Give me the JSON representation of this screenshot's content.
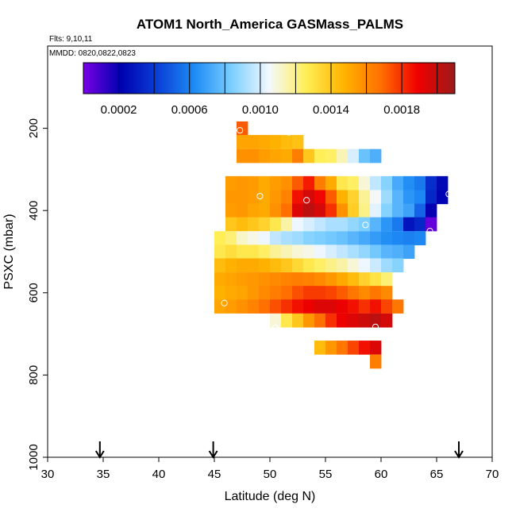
{
  "chart_data": {
    "type": "heatmap",
    "title": "ATOM1 North_America GASMass_PALMS",
    "flights_label": "Flts: 9,10,11",
    "dates_label": "MMDD: 0820,0822,0823",
    "xlabel": "Latitude (deg N)",
    "ylabel": "PSXC (mbar)",
    "xlim": [
      30,
      70
    ],
    "ylim": [
      1000,
      0
    ],
    "x_ticks": [
      30,
      35,
      40,
      45,
      50,
      55,
      60,
      65,
      70
    ],
    "y_ticks": [
      200,
      400,
      600,
      800,
      1000
    ],
    "colorbar": {
      "range": [
        0.0,
        0.0021
      ],
      "tick_values": [
        0.0002,
        0.0006,
        0.001,
        0.0014,
        0.0018
      ],
      "tick_labels": [
        "0.0002",
        "0.0006",
        "0.0010",
        "0.0014",
        "0.0018"
      ],
      "colors": [
        "#7a00e6",
        "#0000b0",
        "#0a3fd6",
        "#1e8cf5",
        "#7ccfff",
        "#f4f8ff",
        "#ffee55",
        "#ffb400",
        "#ff7000",
        "#f00000",
        "#9c1a1a"
      ]
    },
    "cells": [
      {
        "lat": 47,
        "p": 200,
        "v": 0.00172
      },
      {
        "lat": 47,
        "p": 233,
        "v": 0.00152
      },
      {
        "lat": 48,
        "p": 233,
        "v": 0.00152
      },
      {
        "lat": 49,
        "p": 233,
        "v": 0.0015
      },
      {
        "lat": 50,
        "p": 233,
        "v": 0.00148
      },
      {
        "lat": 51,
        "p": 233,
        "v": 0.00144
      },
      {
        "lat": 52,
        "p": 233,
        "v": 0.00142
      },
      {
        "lat": 47,
        "p": 267,
        "v": 0.00158
      },
      {
        "lat": 48,
        "p": 267,
        "v": 0.00158
      },
      {
        "lat": 49,
        "p": 267,
        "v": 0.00154
      },
      {
        "lat": 50,
        "p": 267,
        "v": 0.00152
      },
      {
        "lat": 51,
        "p": 267,
        "v": 0.0015
      },
      {
        "lat": 52,
        "p": 267,
        "v": 0.00164
      },
      {
        "lat": 53,
        "p": 267,
        "v": 0.0014
      },
      {
        "lat": 54,
        "p": 267,
        "v": 0.00126
      },
      {
        "lat": 55,
        "p": 267,
        "v": 0.00124
      },
      {
        "lat": 56,
        "p": 267,
        "v": 0.00114
      },
      {
        "lat": 57,
        "p": 267,
        "v": 0.001
      },
      {
        "lat": 58,
        "p": 267,
        "v": 0.0008
      },
      {
        "lat": 59,
        "p": 267,
        "v": 0.00074
      },
      {
        "lat": 46,
        "p": 333,
        "v": 0.00154
      },
      {
        "lat": 47,
        "p": 333,
        "v": 0.00156
      },
      {
        "lat": 48,
        "p": 333,
        "v": 0.00154
      },
      {
        "lat": 49,
        "p": 333,
        "v": 0.0015
      },
      {
        "lat": 50,
        "p": 333,
        "v": 0.00154
      },
      {
        "lat": 51,
        "p": 333,
        "v": 0.00158
      },
      {
        "lat": 52,
        "p": 333,
        "v": 0.00172
      },
      {
        "lat": 53,
        "p": 333,
        "v": 0.00184
      },
      {
        "lat": 54,
        "p": 333,
        "v": 0.00164
      },
      {
        "lat": 55,
        "p": 333,
        "v": 0.0015
      },
      {
        "lat": 56,
        "p": 333,
        "v": 0.00128
      },
      {
        "lat": 57,
        "p": 333,
        "v": 0.00124
      },
      {
        "lat": 58,
        "p": 333,
        "v": 0.0011
      },
      {
        "lat": 59,
        "p": 333,
        "v": 0.00096
      },
      {
        "lat": 60,
        "p": 333,
        "v": 0.00086
      },
      {
        "lat": 61,
        "p": 333,
        "v": 0.00072
      },
      {
        "lat": 62,
        "p": 333,
        "v": 0.00064
      },
      {
        "lat": 63,
        "p": 333,
        "v": 0.00058
      },
      {
        "lat": 64,
        "p": 333,
        "v": 0.00036
      },
      {
        "lat": 65,
        "p": 333,
        "v": 0.00024
      },
      {
        "lat": 46,
        "p": 367,
        "v": 0.00156
      },
      {
        "lat": 47,
        "p": 367,
        "v": 0.00156
      },
      {
        "lat": 48,
        "p": 367,
        "v": 0.00154
      },
      {
        "lat": 49,
        "p": 367,
        "v": 0.0015
      },
      {
        "lat": 50,
        "p": 367,
        "v": 0.00156
      },
      {
        "lat": 51,
        "p": 367,
        "v": 0.00162
      },
      {
        "lat": 52,
        "p": 367,
        "v": 0.00186
      },
      {
        "lat": 53,
        "p": 367,
        "v": 0.00196
      },
      {
        "lat": 54,
        "p": 367,
        "v": 0.00188
      },
      {
        "lat": 55,
        "p": 367,
        "v": 0.00172
      },
      {
        "lat": 56,
        "p": 367,
        "v": 0.00148
      },
      {
        "lat": 57,
        "p": 367,
        "v": 0.00136
      },
      {
        "lat": 58,
        "p": 367,
        "v": 0.00118
      },
      {
        "lat": 59,
        "p": 367,
        "v": 0.00106
      },
      {
        "lat": 60,
        "p": 367,
        "v": 0.0009
      },
      {
        "lat": 61,
        "p": 367,
        "v": 0.00076
      },
      {
        "lat": 62,
        "p": 367,
        "v": 0.00066
      },
      {
        "lat": 63,
        "p": 367,
        "v": 0.00062
      },
      {
        "lat": 64,
        "p": 367,
        "v": 0.00034
      },
      {
        "lat": 65,
        "p": 367,
        "v": 0.00022
      },
      {
        "lat": 46,
        "p": 400,
        "v": 0.00154
      },
      {
        "lat": 47,
        "p": 400,
        "v": 0.00156
      },
      {
        "lat": 48,
        "p": 400,
        "v": 0.00152
      },
      {
        "lat": 49,
        "p": 400,
        "v": 0.0015
      },
      {
        "lat": 50,
        "p": 400,
        "v": 0.00158
      },
      {
        "lat": 51,
        "p": 400,
        "v": 0.00168
      },
      {
        "lat": 52,
        "p": 400,
        "v": 0.00194
      },
      {
        "lat": 53,
        "p": 400,
        "v": 0.00202
      },
      {
        "lat": 54,
        "p": 400,
        "v": 0.00196
      },
      {
        "lat": 55,
        "p": 400,
        "v": 0.0018
      },
      {
        "lat": 56,
        "p": 400,
        "v": 0.00158
      },
      {
        "lat": 57,
        "p": 400,
        "v": 0.00138
      },
      {
        "lat": 58,
        "p": 400,
        "v": 0.0012
      },
      {
        "lat": 59,
        "p": 400,
        "v": 0.00102
      },
      {
        "lat": 60,
        "p": 400,
        "v": 0.00086
      },
      {
        "lat": 61,
        "p": 400,
        "v": 0.00076
      },
      {
        "lat": 62,
        "p": 400,
        "v": 0.0007
      },
      {
        "lat": 63,
        "p": 400,
        "v": 0.00052
      },
      {
        "lat": 64,
        "p": 400,
        "v": 0.0002
      },
      {
        "lat": 46,
        "p": 433,
        "v": 0.0014
      },
      {
        "lat": 47,
        "p": 433,
        "v": 0.00144
      },
      {
        "lat": 48,
        "p": 433,
        "v": 0.0014
      },
      {
        "lat": 49,
        "p": 433,
        "v": 0.00136
      },
      {
        "lat": 50,
        "p": 433,
        "v": 0.00128
      },
      {
        "lat": 51,
        "p": 433,
        "v": 0.00116
      },
      {
        "lat": 52,
        "p": 433,
        "v": 0.00104
      },
      {
        "lat": 53,
        "p": 433,
        "v": 0.001
      },
      {
        "lat": 54,
        "p": 433,
        "v": 0.00096
      },
      {
        "lat": 55,
        "p": 433,
        "v": 0.00092
      },
      {
        "lat": 56,
        "p": 433,
        "v": 0.00092
      },
      {
        "lat": 57,
        "p": 433,
        "v": 0.00088
      },
      {
        "lat": 58,
        "p": 433,
        "v": 0.00084
      },
      {
        "lat": 59,
        "p": 433,
        "v": 0.00076
      },
      {
        "lat": 60,
        "p": 433,
        "v": 0.00066
      },
      {
        "lat": 61,
        "p": 433,
        "v": 0.00058
      },
      {
        "lat": 62,
        "p": 433,
        "v": 0.00028
      },
      {
        "lat": 63,
        "p": 433,
        "v": 0.00034
      },
      {
        "lat": 64,
        "p": 433,
        "v": 4e-05
      },
      {
        "lat": 45,
        "p": 467,
        "v": 0.00126
      },
      {
        "lat": 46,
        "p": 467,
        "v": 0.00122
      },
      {
        "lat": 47,
        "p": 467,
        "v": 0.00112
      },
      {
        "lat": 48,
        "p": 467,
        "v": 0.00108
      },
      {
        "lat": 49,
        "p": 467,
        "v": 0.00104
      },
      {
        "lat": 50,
        "p": 467,
        "v": 0.00096
      },
      {
        "lat": 51,
        "p": 467,
        "v": 0.00092
      },
      {
        "lat": 52,
        "p": 467,
        "v": 0.0009
      },
      {
        "lat": 53,
        "p": 467,
        "v": 0.00086
      },
      {
        "lat": 54,
        "p": 467,
        "v": 0.00084
      },
      {
        "lat": 55,
        "p": 467,
        "v": 0.00082
      },
      {
        "lat": 56,
        "p": 467,
        "v": 0.0008
      },
      {
        "lat": 57,
        "p": 467,
        "v": 0.00076
      },
      {
        "lat": 58,
        "p": 467,
        "v": 0.00072
      },
      {
        "lat": 59,
        "p": 467,
        "v": 0.00068
      },
      {
        "lat": 60,
        "p": 467,
        "v": 0.00064
      },
      {
        "lat": 61,
        "p": 467,
        "v": 0.00062
      },
      {
        "lat": 62,
        "p": 467,
        "v": 0.0006
      },
      {
        "lat": 63,
        "p": 467,
        "v": 0.00062
      },
      {
        "lat": 45,
        "p": 500,
        "v": 0.00128
      },
      {
        "lat": 46,
        "p": 500,
        "v": 0.00132
      },
      {
        "lat": 47,
        "p": 500,
        "v": 0.00128
      },
      {
        "lat": 48,
        "p": 500,
        "v": 0.00128
      },
      {
        "lat": 49,
        "p": 500,
        "v": 0.00124
      },
      {
        "lat": 50,
        "p": 500,
        "v": 0.00118
      },
      {
        "lat": 51,
        "p": 500,
        "v": 0.00114
      },
      {
        "lat": 52,
        "p": 500,
        "v": 0.0011
      },
      {
        "lat": 53,
        "p": 500,
        "v": 0.00108
      },
      {
        "lat": 54,
        "p": 500,
        "v": 0.00104
      },
      {
        "lat": 55,
        "p": 500,
        "v": 0.001
      },
      {
        "lat": 56,
        "p": 500,
        "v": 0.00096
      },
      {
        "lat": 57,
        "p": 500,
        "v": 0.00092
      },
      {
        "lat": 58,
        "p": 500,
        "v": 0.00088
      },
      {
        "lat": 59,
        "p": 500,
        "v": 0.00082
      },
      {
        "lat": 60,
        "p": 500,
        "v": 0.00076
      },
      {
        "lat": 61,
        "p": 500,
        "v": 0.00074
      },
      {
        "lat": 62,
        "p": 500,
        "v": 0.0007
      },
      {
        "lat": 45,
        "p": 533,
        "v": 0.00144
      },
      {
        "lat": 46,
        "p": 533,
        "v": 0.00148
      },
      {
        "lat": 47,
        "p": 533,
        "v": 0.0015
      },
      {
        "lat": 48,
        "p": 533,
        "v": 0.0015
      },
      {
        "lat": 49,
        "p": 533,
        "v": 0.00148
      },
      {
        "lat": 50,
        "p": 533,
        "v": 0.00144
      },
      {
        "lat": 51,
        "p": 533,
        "v": 0.0014
      },
      {
        "lat": 52,
        "p": 533,
        "v": 0.00134
      },
      {
        "lat": 53,
        "p": 533,
        "v": 0.00128
      },
      {
        "lat": 54,
        "p": 533,
        "v": 0.00124
      },
      {
        "lat": 55,
        "p": 533,
        "v": 0.0012
      },
      {
        "lat": 56,
        "p": 533,
        "v": 0.00116
      },
      {
        "lat": 57,
        "p": 533,
        "v": 0.0011
      },
      {
        "lat": 58,
        "p": 533,
        "v": 0.00104
      },
      {
        "lat": 59,
        "p": 533,
        "v": 0.00098
      },
      {
        "lat": 60,
        "p": 533,
        "v": 0.0009
      },
      {
        "lat": 61,
        "p": 533,
        "v": 0.00086
      },
      {
        "lat": 45,
        "p": 567,
        "v": 0.0015
      },
      {
        "lat": 46,
        "p": 567,
        "v": 0.00152
      },
      {
        "lat": 47,
        "p": 567,
        "v": 0.00154
      },
      {
        "lat": 48,
        "p": 567,
        "v": 0.00156
      },
      {
        "lat": 49,
        "p": 567,
        "v": 0.00158
      },
      {
        "lat": 50,
        "p": 567,
        "v": 0.0016
      },
      {
        "lat": 51,
        "p": 567,
        "v": 0.00162
      },
      {
        "lat": 52,
        "p": 567,
        "v": 0.00164
      },
      {
        "lat": 53,
        "p": 567,
        "v": 0.00162
      },
      {
        "lat": 54,
        "p": 567,
        "v": 0.0016
      },
      {
        "lat": 55,
        "p": 567,
        "v": 0.00156
      },
      {
        "lat": 56,
        "p": 567,
        "v": 0.0015
      },
      {
        "lat": 57,
        "p": 567,
        "v": 0.00144
      },
      {
        "lat": 58,
        "p": 567,
        "v": 0.00136
      },
      {
        "lat": 59,
        "p": 567,
        "v": 0.0013
      },
      {
        "lat": 60,
        "p": 567,
        "v": 0.00122
      },
      {
        "lat": 45,
        "p": 600,
        "v": 0.00148
      },
      {
        "lat": 46,
        "p": 600,
        "v": 0.0015
      },
      {
        "lat": 47,
        "p": 600,
        "v": 0.00152
      },
      {
        "lat": 48,
        "p": 600,
        "v": 0.00156
      },
      {
        "lat": 49,
        "p": 600,
        "v": 0.0016
      },
      {
        "lat": 50,
        "p": 600,
        "v": 0.00164
      },
      {
        "lat": 51,
        "p": 600,
        "v": 0.00168
      },
      {
        "lat": 52,
        "p": 600,
        "v": 0.00174
      },
      {
        "lat": 53,
        "p": 600,
        "v": 0.00178
      },
      {
        "lat": 54,
        "p": 600,
        "v": 0.00178
      },
      {
        "lat": 55,
        "p": 600,
        "v": 0.00176
      },
      {
        "lat": 56,
        "p": 600,
        "v": 0.00172
      },
      {
        "lat": 57,
        "p": 600,
        "v": 0.00166
      },
      {
        "lat": 58,
        "p": 600,
        "v": 0.0016
      },
      {
        "lat": 59,
        "p": 600,
        "v": 0.00166
      },
      {
        "lat": 60,
        "p": 600,
        "v": 0.0016
      },
      {
        "lat": 45,
        "p": 633,
        "v": 0.00152
      },
      {
        "lat": 46,
        "p": 633,
        "v": 0.00154
      },
      {
        "lat": 47,
        "p": 633,
        "v": 0.00158
      },
      {
        "lat": 48,
        "p": 633,
        "v": 0.00162
      },
      {
        "lat": 49,
        "p": 633,
        "v": 0.00168
      },
      {
        "lat": 50,
        "p": 633,
        "v": 0.00174
      },
      {
        "lat": 51,
        "p": 633,
        "v": 0.0018
      },
      {
        "lat": 52,
        "p": 633,
        "v": 0.00186
      },
      {
        "lat": 53,
        "p": 633,
        "v": 0.0019
      },
      {
        "lat": 54,
        "p": 633,
        "v": 0.00194
      },
      {
        "lat": 55,
        "p": 633,
        "v": 0.00194
      },
      {
        "lat": 56,
        "p": 633,
        "v": 0.0019
      },
      {
        "lat": 57,
        "p": 633,
        "v": 0.00186
      },
      {
        "lat": 58,
        "p": 633,
        "v": 0.0018
      },
      {
        "lat": 59,
        "p": 633,
        "v": 0.00186
      },
      {
        "lat": 60,
        "p": 633,
        "v": 0.00176
      },
      {
        "lat": 61,
        "p": 633,
        "v": 0.00166
      },
      {
        "lat": 50,
        "p": 667,
        "v": 0.0011
      },
      {
        "lat": 51,
        "p": 667,
        "v": 0.00128
      },
      {
        "lat": 52,
        "p": 667,
        "v": 0.0014
      },
      {
        "lat": 53,
        "p": 667,
        "v": 0.00156
      },
      {
        "lat": 54,
        "p": 667,
        "v": 0.00168
      },
      {
        "lat": 55,
        "p": 667,
        "v": 0.0018
      },
      {
        "lat": 56,
        "p": 667,
        "v": 0.0019
      },
      {
        "lat": 57,
        "p": 667,
        "v": 0.00194
      },
      {
        "lat": 58,
        "p": 667,
        "v": 0.00198
      },
      {
        "lat": 59,
        "p": 667,
        "v": 0.00202
      },
      {
        "lat": 60,
        "p": 667,
        "v": 0.00196
      },
      {
        "lat": 54,
        "p": 733,
        "v": 0.00144
      },
      {
        "lat": 55,
        "p": 733,
        "v": 0.00156
      },
      {
        "lat": 56,
        "p": 733,
        "v": 0.00166
      },
      {
        "lat": 57,
        "p": 733,
        "v": 0.00176
      },
      {
        "lat": 58,
        "p": 733,
        "v": 0.00186
      },
      {
        "lat": 59,
        "p": 733,
        "v": 0.00194
      },
      {
        "lat": 59,
        "p": 767,
        "v": 0.00164
      }
    ],
    "markers": [
      {
        "lat": 47.3,
        "p": 205
      },
      {
        "lat": 51.7,
        "p": 210
      },
      {
        "lat": 49.1,
        "p": 365
      },
      {
        "lat": 53.3,
        "p": 375
      },
      {
        "lat": 66.1,
        "p": 360
      },
      {
        "lat": 58.6,
        "p": 435
      },
      {
        "lat": 64.4,
        "p": 450
      },
      {
        "lat": 45.9,
        "p": 625
      },
      {
        "lat": 50.5,
        "p": 685
      },
      {
        "lat": 59.5,
        "p": 683
      },
      {
        "lat": 59.2,
        "p": 805
      }
    ],
    "arrows_lat": [
      34.7,
      44.9,
      67.0
    ]
  }
}
